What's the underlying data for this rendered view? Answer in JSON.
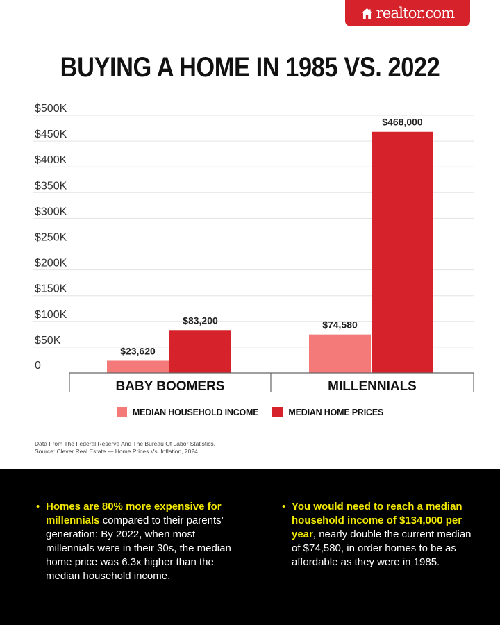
{
  "brand": {
    "name": "realtor.com",
    "icon": "house-icon",
    "color": "#d6222a"
  },
  "title": "BUYING A HOME IN 1985 VS. 2022",
  "chart_data": {
    "type": "bar",
    "title": "BUYING A HOME IN 1985 VS. 2022",
    "categories": [
      "BABY BOOMERS",
      "MILLENNIALS"
    ],
    "series": [
      {
        "name": "MEDIAN HOUSEHOLD INCOME",
        "color": "#f47a7a",
        "values": [
          23620,
          74580
        ],
        "labels": [
          "$23,620",
          "$74,580"
        ]
      },
      {
        "name": "MEDIAN HOME PRICES",
        "color": "#d6222a",
        "values": [
          83200,
          468000
        ],
        "labels": [
          "$83,200",
          "$468,000"
        ]
      }
    ],
    "ylim": [
      0,
      500000
    ],
    "yticks": [
      0,
      50000,
      100000,
      150000,
      200000,
      250000,
      300000,
      350000,
      400000,
      450000,
      500000
    ],
    "ytick_labels": [
      "0",
      "$50K",
      "$100K",
      "$150K",
      "$200K",
      "$250K",
      "$300K",
      "$350K",
      "$400K",
      "$450K",
      "$500K"
    ],
    "grid": true,
    "legend_position": "bottom-center"
  },
  "source": {
    "line1": "Data From The Federal Reserve And The Bureau Of Labor Statistics.",
    "line2": "Source: Clever Real Estate — Home Prices Vs. Inflation, 2024"
  },
  "bullets": {
    "left": {
      "highlight": "Homes are 80% more expensive for millennials",
      "text": " compared to their parents’ generation: By 2022, when most millennials were in their 30s, the median home price was 6.3x higher than the median household income."
    },
    "right": {
      "highlight": "You would need to reach a median household income of $134,000 per year",
      "text": ", nearly double the current median of $74,580, in order homes to be as affordable as they were in 1985."
    },
    "marker": "•",
    "highlight_color": "#f2e800"
  }
}
